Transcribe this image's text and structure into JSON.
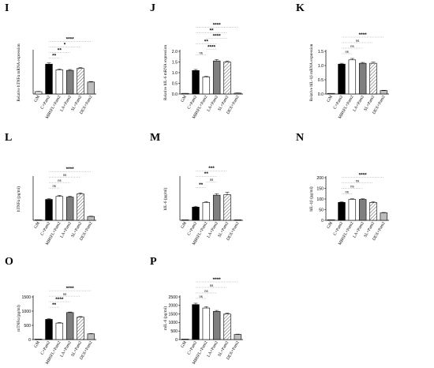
{
  "colors": {
    "bar_colors": [
      "#ffffff",
      "#000000",
      "#ffffff",
      "#7f7f7f",
      "#ffffff",
      "#bdbdbd"
    ],
    "bar_patterns": [
      "solid",
      "solid",
      "solid",
      "solid",
      "hatch",
      "solid"
    ],
    "axis": "#000000",
    "bracket": "#9a9a9a"
  },
  "chart_data": [
    {
      "panel": "I",
      "type": "bar",
      "ylabel": "Relative hTNFα mRNA expression",
      "categories": [
        "GM",
        "C+Pam2",
        "MBSFL+Pam2",
        "LA+Pam2",
        "SL+Pam2",
        "DEX+Pam2"
      ],
      "values": [
        0.08,
        1.05,
        0.85,
        0.83,
        0.9,
        0.42
      ],
      "errors": [
        0.01,
        0.04,
        0.03,
        0.03,
        0.03,
        0.02
      ],
      "ylim": [
        0,
        1.5
      ],
      "yticks": [],
      "brackets": [
        {
          "from": 1,
          "to": 2,
          "label": "**"
        },
        {
          "from": 1,
          "to": 3,
          "label": "**"
        },
        {
          "from": 1,
          "to": 4,
          "label": "*"
        },
        {
          "from": 1,
          "to": 5,
          "label": "****"
        }
      ]
    },
    {
      "panel": "J",
      "type": "bar",
      "ylabel": "Relative hIL-6 mRNA expression",
      "categories": [
        "GM",
        "C+Pam2",
        "MBSFL+Pam2",
        "LA+Pam2",
        "SL+Pam2",
        "DEX+Pam2"
      ],
      "values": [
        0.02,
        1.1,
        0.8,
        1.55,
        1.5,
        0.04
      ],
      "errors": [
        0.01,
        0.05,
        0.03,
        0.06,
        0.05,
        0.01
      ],
      "ylim": [
        0,
        2.0
      ],
      "yticks": [
        "0.0",
        "0.5",
        "1.0",
        "1.5",
        "2.0"
      ],
      "brackets": [
        {
          "from": 1,
          "to": 2,
          "label": "ns"
        },
        {
          "from": 2,
          "to": 3,
          "label": "****"
        },
        {
          "from": 1,
          "to": 3,
          "label": "**"
        },
        {
          "from": 2,
          "to": 4,
          "label": "****"
        },
        {
          "from": 1,
          "to": 4,
          "label": "**"
        },
        {
          "from": 1,
          "to": 5,
          "label": "****"
        }
      ]
    },
    {
      "panel": "K",
      "type": "bar",
      "ylabel": "Relative hIL-1β mRNA expression",
      "categories": [
        "GM",
        "C+Pam2",
        "MBSFL+Pam2",
        "LA+Pam2",
        "SL+Pam2",
        "DEX+Pam2"
      ],
      "values": [
        0.01,
        1.05,
        1.2,
        1.08,
        1.08,
        0.12
      ],
      "errors": [
        0.0,
        0.03,
        0.05,
        0.03,
        0.04,
        0.01
      ],
      "ylim": [
        0,
        1.5
      ],
      "yticks": [
        "0.0",
        "0.5",
        "1.0",
        "1.5"
      ],
      "brackets": [
        {
          "from": 1,
          "to": 2,
          "label": "ns"
        },
        {
          "from": 1,
          "to": 3,
          "label": "ns"
        },
        {
          "from": 1,
          "to": 4,
          "label": "ns"
        },
        {
          "from": 1,
          "to": 5,
          "label": "****"
        }
      ]
    },
    {
      "panel": "L",
      "type": "bar",
      "ylabel": "hTNFα (pg/ml)",
      "categories": [
        "GM",
        "C+Pam2",
        "MBSFL+Pam2",
        "LA+Pam2",
        "SL+Pam2",
        "DEX+Pam2"
      ],
      "values": [
        0,
        490,
        560,
        545,
        620,
        90
      ],
      "errors": [
        0,
        20,
        25,
        20,
        25,
        8
      ],
      "ylim": [
        0,
        1000
      ],
      "yticks": [],
      "brackets": [
        {
          "from": 1,
          "to": 2,
          "label": "ns"
        },
        {
          "from": 1,
          "to": 3,
          "label": "ns"
        },
        {
          "from": 1,
          "to": 4,
          "label": "ns"
        },
        {
          "from": 1,
          "to": 5,
          "label": "****"
        }
      ]
    },
    {
      "panel": "M",
      "type": "bar",
      "ylabel": "hIL-6 (pg/ml)",
      "categories": [
        "GM",
        "C+Pam2",
        "MBSFL+Pam2",
        "LA+Pam2",
        "SL+Pam2",
        "DEX+Pam2"
      ],
      "values": [
        0,
        155,
        210,
        295,
        300,
        0
      ],
      "errors": [
        0,
        10,
        10,
        18,
        30,
        0
      ],
      "ylim": [
        0,
        500
      ],
      "yticks": [],
      "brackets": [
        {
          "from": 1,
          "to": 2,
          "label": "**"
        },
        {
          "from": 2,
          "to": 3,
          "label": "ns"
        },
        {
          "from": 1,
          "to": 3,
          "label": "**"
        },
        {
          "from": 1,
          "to": 4,
          "label": "***"
        }
      ]
    },
    {
      "panel": "N",
      "type": "bar",
      "ylabel": "hIL-1β (pg/ml)",
      "categories": [
        "GM",
        "C+Pam2",
        "MBSFL+Pam2",
        "LA+Pam2",
        "SL+Pam2",
        "DEX+Pam2"
      ],
      "values": [
        2,
        84,
        98,
        98,
        84,
        35
      ],
      "errors": [
        0,
        3,
        3,
        3,
        3,
        2
      ],
      "ylim": [
        0,
        200
      ],
      "yticks": [
        "0",
        "50",
        "100",
        "150",
        "200"
      ],
      "brackets": [
        {
          "from": 1,
          "to": 2,
          "label": "ns"
        },
        {
          "from": 1,
          "to": 3,
          "label": "ns"
        },
        {
          "from": 1,
          "to": 4,
          "label": "ns"
        },
        {
          "from": 1,
          "to": 5,
          "label": "****"
        }
      ]
    },
    {
      "panel": "O",
      "type": "bar",
      "ylabel": "mTNFα (pg/ml)",
      "categories": [
        "GM",
        "C+Pam2",
        "MBSFL+Pam2",
        "LA+Pam2",
        "SL+Pam2",
        "DEX+Pam2"
      ],
      "values": [
        0,
        710,
        580,
        950,
        790,
        200
      ],
      "errors": [
        0,
        25,
        20,
        20,
        20,
        10
      ],
      "ylim": [
        0,
        1500
      ],
      "yticks": [
        "0",
        "500",
        "1000",
        "1500"
      ],
      "brackets": [
        {
          "from": 1,
          "to": 2,
          "label": "**"
        },
        {
          "from": 1,
          "to": 3,
          "label": "****"
        },
        {
          "from": 1,
          "to": 4,
          "label": "ns"
        },
        {
          "from": 1,
          "to": 5,
          "label": "****"
        }
      ]
    },
    {
      "panel": "P",
      "type": "bar",
      "ylabel": "mIL-6 (pg/ml)",
      "categories": [
        "GM",
        "C+Pam2",
        "MBSFL+Pam2",
        "LA+Pam2",
        "SL+Pam2",
        "DEX+Pam2"
      ],
      "values": [
        0,
        2050,
        1850,
        1650,
        1500,
        300
      ],
      "errors": [
        0,
        80,
        80,
        60,
        60,
        20
      ],
      "ylim": [
        0,
        2500
      ],
      "yticks": [
        "0",
        "500",
        "1000",
        "1500",
        "2000",
        "2500"
      ],
      "brackets": [
        {
          "from": 1,
          "to": 2,
          "label": "ns"
        },
        {
          "from": 1,
          "to": 3,
          "label": "ns"
        },
        {
          "from": 1,
          "to": 4,
          "label": "ns"
        },
        {
          "from": 1,
          "to": 5,
          "label": "****"
        }
      ]
    }
  ]
}
